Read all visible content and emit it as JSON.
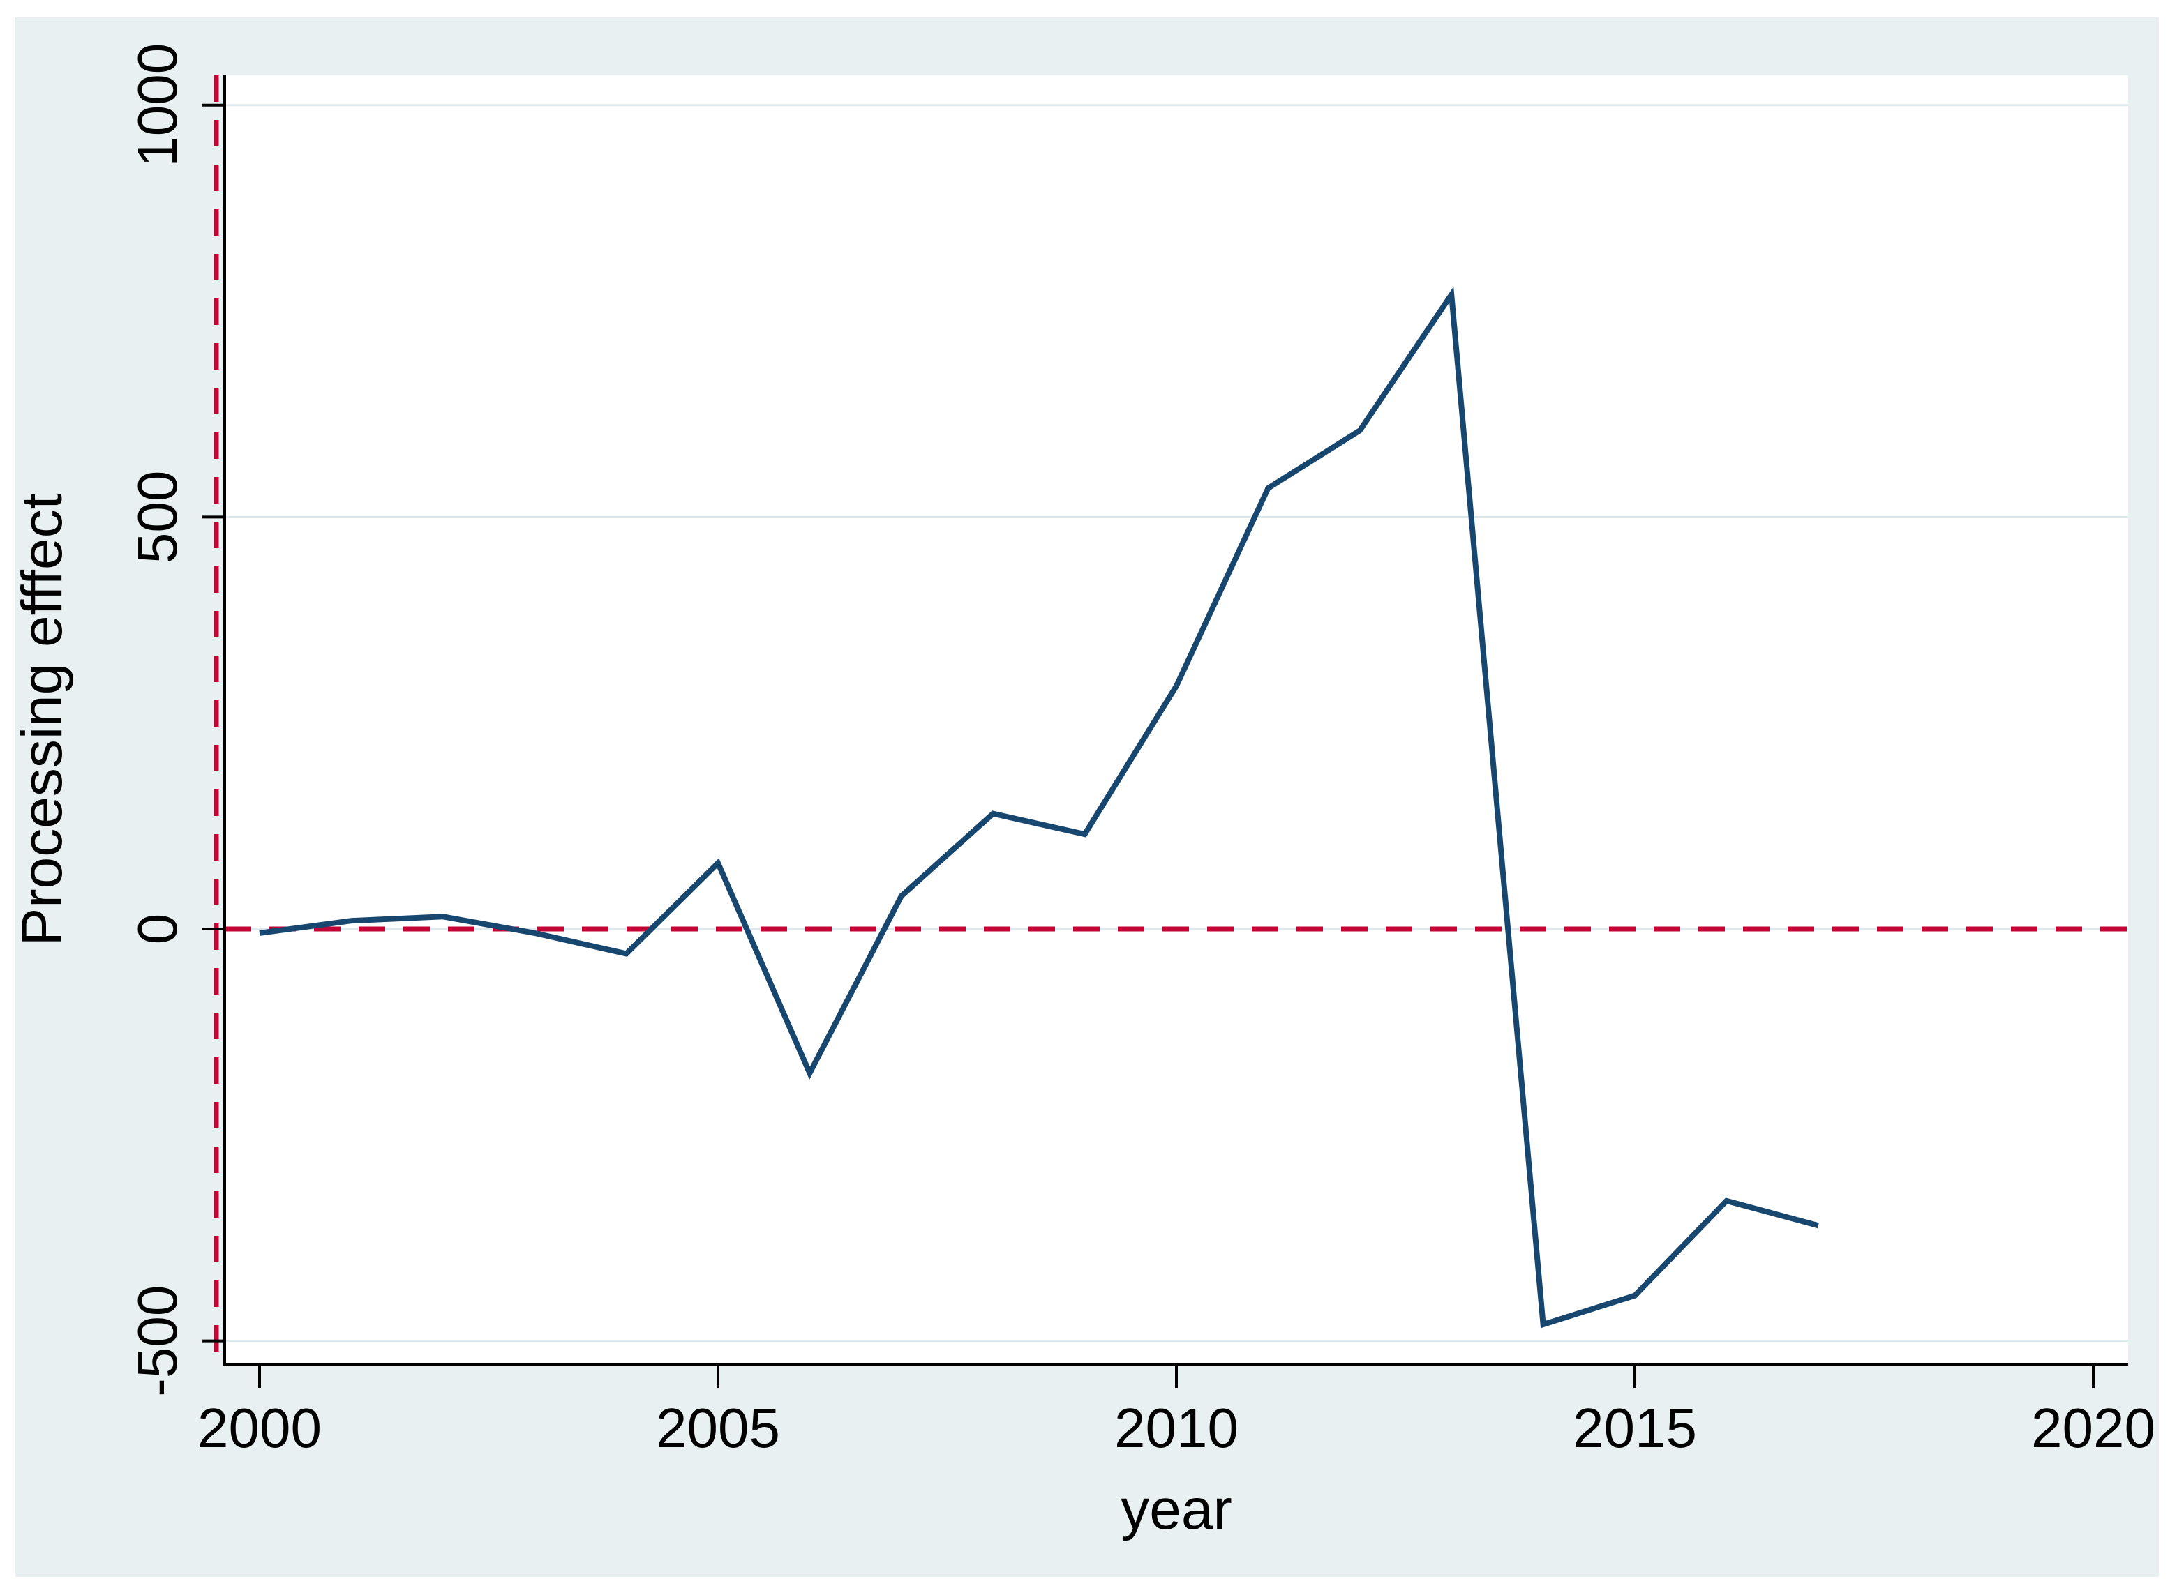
{
  "chart_data": {
    "type": "line",
    "title": "",
    "xlabel": "year",
    "ylabel": "Processing efffect",
    "x": [
      2000,
      2001,
      2002,
      2003,
      2004,
      2005,
      2006,
      2007,
      2008,
      2009,
      2010,
      2011,
      2012,
      2013,
      2014,
      2015,
      2016,
      2017
    ],
    "series": [
      {
        "name": "Processing effect",
        "values": [
          -5,
          10,
          15,
          -5,
          -30,
          80,
          -175,
          40,
          140,
          115,
          295,
          535,
          605,
          770,
          -480,
          -445,
          -330,
          -360
        ]
      }
    ],
    "xticks": [
      2000,
      2005,
      2010,
      2015,
      2020
    ],
    "yticks": [
      1000,
      500,
      0,
      -500
    ],
    "xlim": [
      1999.6,
      2020.4
    ],
    "ylim": [
      -530,
      1040
    ],
    "grid": "horizontal-only",
    "legend_position": "none",
    "reference_lines": {
      "horizontal_y": 0,
      "vertical_x": 1999.5,
      "style": "dashed"
    },
    "colors": {
      "series_line": "#17466f",
      "reference_line": "#c10534",
      "canvas_background": "#e9f0f2",
      "plot_background": "#ffffff",
      "gridline": "#dde9ed",
      "axis": "#000000",
      "text": "#000000"
    }
  }
}
